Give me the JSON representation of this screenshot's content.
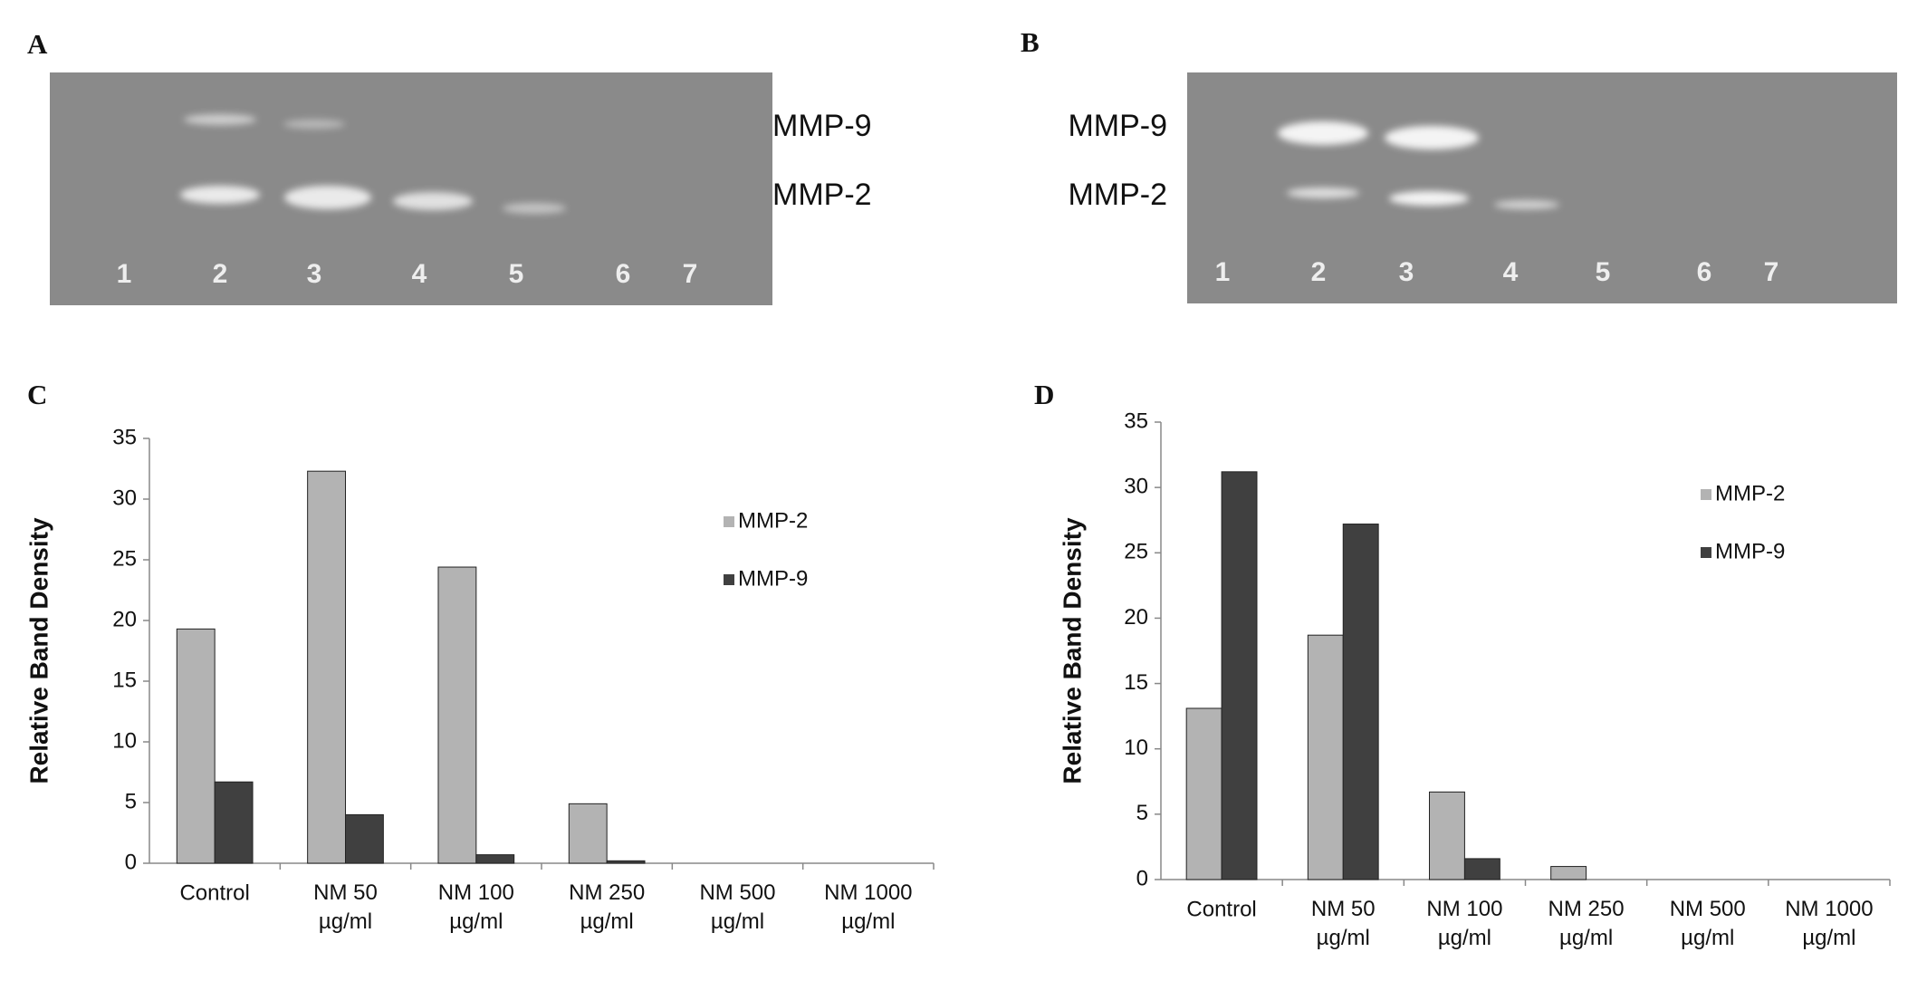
{
  "panel_labels": [
    "A",
    "B",
    "C",
    "D"
  ],
  "gels": [
    {
      "band_labels": [
        "MMP-9",
        "MMP-2"
      ],
      "lanes": [
        "1",
        "2",
        "3",
        "4",
        "5",
        "6",
        "7"
      ]
    },
    {
      "band_labels": [
        "MMP-9",
        "MMP-2"
      ],
      "lanes": [
        "1",
        "2",
        "3",
        "4",
        "5",
        "6",
        "7"
      ]
    }
  ],
  "chart_data": [
    {
      "type": "bar",
      "y_label": "Relative Band Density",
      "categories": [
        "Control",
        "NM 50 µg/ml",
        "NM 100 µg/ml",
        "NM 250 µg/ml",
        "NM 500 µg/ml",
        "NM 1000 µg/ml"
      ],
      "series": [
        {
          "name": "MMP-2",
          "color": "#b3b3b3",
          "values": [
            19.3,
            32.3,
            24.4,
            4.9,
            0,
            0
          ]
        },
        {
          "name": "MMP-9",
          "color": "#404040",
          "values": [
            6.7,
            4.0,
            0.7,
            0.2,
            0,
            0
          ]
        }
      ],
      "ylim": [
        0,
        35
      ],
      "yticks": [
        0,
        5,
        10,
        15,
        20,
        25,
        30,
        35
      ],
      "legend": "right"
    },
    {
      "type": "bar",
      "y_label": "Relative Band Density",
      "categories": [
        "Control",
        "NM 50 µg/ml",
        "NM 100 µg/ml",
        "NM 250 µg/ml",
        "NM 500 µg/ml",
        "NM 1000 µg/ml"
      ],
      "series": [
        {
          "name": "MMP-2",
          "color": "#b3b3b3",
          "values": [
            13.1,
            18.7,
            6.7,
            1.0,
            0,
            0
          ]
        },
        {
          "name": "MMP-9",
          "color": "#404040",
          "values": [
            31.2,
            27.2,
            1.6,
            0,
            0,
            0
          ]
        }
      ],
      "ylim": [
        0,
        35
      ],
      "yticks": [
        0,
        5,
        10,
        15,
        20,
        25,
        30,
        35
      ],
      "legend": "right"
    }
  ]
}
